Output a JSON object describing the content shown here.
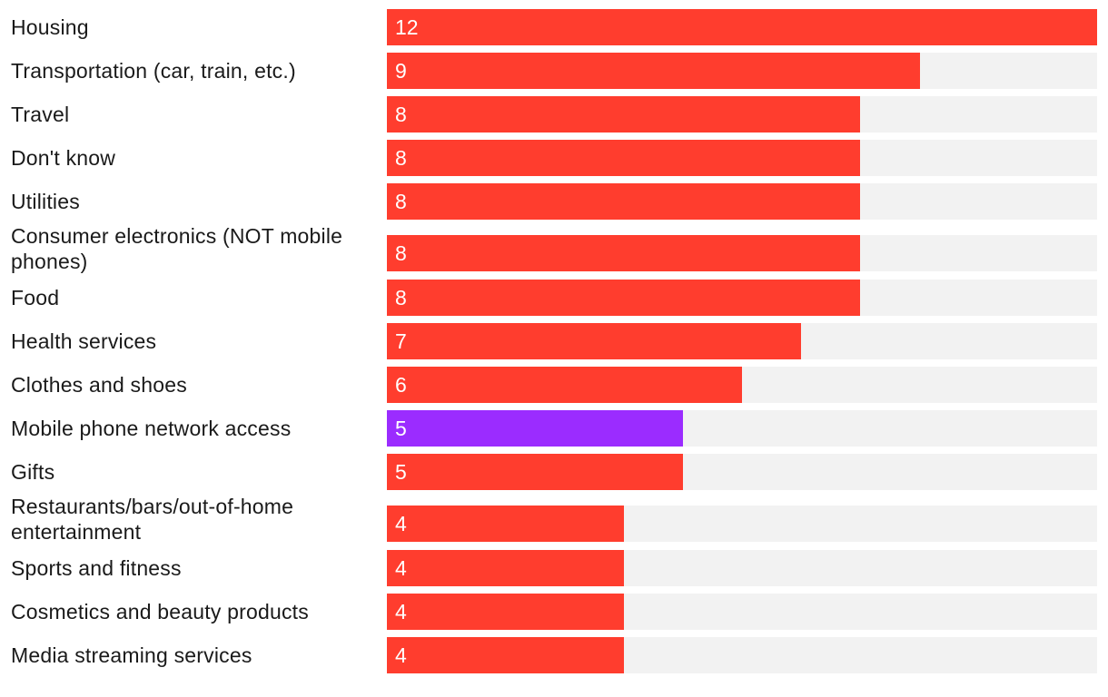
{
  "chart_data": {
    "type": "bar",
    "orientation": "horizontal",
    "xlim": [
      0,
      12
    ],
    "colors": {
      "default": "#ff3d2e",
      "highlight": "#9b2cff",
      "track": "#f2f2f2",
      "value_text": "#ffffff",
      "label_text": "#1a1a1a"
    },
    "categories": [
      "Housing",
      "Transportation (car, train, etc.)",
      "Travel",
      "Don't know",
      "Utilities",
      "Consumer electronics (NOT mobile phones)",
      "Food",
      "Health services",
      "Clothes and shoes",
      "Mobile phone network access",
      "Gifts",
      "Restaurants/bars/out-of-home entertainment",
      "Sports and fitness",
      "Cosmetics and beauty products",
      "Media streaming services"
    ],
    "values": [
      12,
      9,
      8,
      8,
      8,
      8,
      8,
      7,
      6,
      5,
      5,
      4,
      4,
      4,
      4
    ],
    "highlighted": [
      "Mobile phone network access"
    ]
  }
}
